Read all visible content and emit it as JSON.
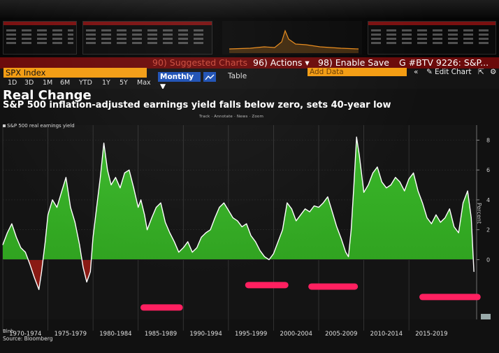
{
  "menu": {
    "suggested_charts": "90) Suggested Charts",
    "actions": "96) Actions ▾",
    "enable_save": "98) Enable Save",
    "btv": "G #BTV 9226: S&P..."
  },
  "security": {
    "ticker": "SPX Index",
    "add_data": "Add Data",
    "edit_chart": "Edit Chart",
    "nav_arrows": "«",
    "edit_icon": "✎",
    "gear_icon": "⚙",
    "popout_icon": "⇱"
  },
  "periods": [
    "1D",
    "3D",
    "1M",
    "6M",
    "YTD",
    "1Y",
    "5Y",
    "Max"
  ],
  "frequency": "Monthly ▼",
  "table_label": "Table",
  "chart_tools": "Track · Annotate · News · Zoom",
  "source": "Source: Bloomberg",
  "source_short": "Blnb",
  "colors": {
    "area_fill": "#2e9e1e",
    "area_fill_top": "#3ab82a",
    "line": "#ffffff",
    "negative_fill": "#8a1a14",
    "marker": "#ff2060",
    "menu_bg": "#6b0a0a",
    "security_bg": "#f39c12",
    "frequency_bg": "#1b4fb4"
  },
  "chart_data": {
    "type": "area",
    "title": "Real Change",
    "subtitle": "S&P 500 inflation-adjusted earnings yield falls below zero, sets 40-year low",
    "legend": [
      "S&P 500 real earnings yield"
    ],
    "ylabel": "Percent",
    "ylim": [
      -4,
      9
    ],
    "yticks": [
      0,
      2,
      4,
      6,
      8
    ],
    "xlim": [
      1970,
      2022.5
    ],
    "x_tick_labels": [
      "1970-1974",
      "1975-1979",
      "1980-1984",
      "1985-1989",
      "1990-1994",
      "1995-1999",
      "2000-2004",
      "2005-2009",
      "2010-2014",
      "2015-2019"
    ],
    "x_tick_starts": [
      1970,
      1975,
      1980,
      1985,
      1990,
      1995,
      2000,
      2005,
      2010,
      2015
    ],
    "grid": true,
    "series": [
      {
        "name": "S&P 500 real earnings yield",
        "x": [
          1970,
          1970.5,
          1971,
          1971.5,
          1972,
          1972.5,
          1973,
          1973.5,
          1974,
          1974.3,
          1974.7,
          1975,
          1975.5,
          1976,
          1976.5,
          1977,
          1977.5,
          1978,
          1978.5,
          1978.9,
          1979.3,
          1979.7,
          1980,
          1980.4,
          1980.8,
          1981.2,
          1981.6,
          1982,
          1982.5,
          1983,
          1983.5,
          1984,
          1984.5,
          1985,
          1985.3,
          1985.7,
          1986,
          1986.5,
          1987,
          1987.5,
          1988,
          1988.5,
          1989,
          1989.5,
          1990,
          1990.5,
          1991,
          1991.5,
          1992,
          1992.5,
          1993,
          1993.5,
          1994,
          1994.5,
          1995,
          1995.5,
          1996,
          1996.5,
          1997,
          1997.5,
          1998,
          1998.5,
          1999,
          1999.5,
          2000,
          2000.5,
          2001,
          2001.5,
          2002,
          2002.5,
          2003,
          2003.5,
          2004,
          2004.5,
          2005,
          2005.5,
          2006,
          2006.5,
          2007,
          2007.5,
          2008,
          2008.3,
          2008.6,
          2008.9,
          2009.2,
          2009.5,
          2010,
          2010.5,
          2011,
          2011.5,
          2012,
          2012.5,
          2013,
          2013.5,
          2014,
          2014.5,
          2015,
          2015.5,
          2016,
          2016.5,
          2017,
          2017.5,
          2018,
          2018.5,
          2019,
          2019.5,
          2020,
          2020.5,
          2021,
          2021.5,
          2021.9,
          2022.2
        ],
        "values": [
          1.0,
          1.8,
          2.4,
          1.5,
          0.8,
          0.5,
          -0.3,
          -1.2,
          -2.0,
          -0.8,
          1.2,
          3.0,
          4.0,
          3.5,
          4.5,
          5.5,
          3.5,
          2.5,
          1.0,
          -0.5,
          -1.5,
          -0.8,
          1.5,
          3.5,
          5.5,
          7.8,
          6.0,
          5.0,
          5.5,
          4.8,
          5.8,
          6.0,
          4.8,
          3.5,
          4.0,
          3.0,
          2.0,
          2.8,
          3.5,
          3.8,
          2.5,
          1.8,
          1.2,
          0.5,
          0.8,
          1.2,
          0.5,
          0.8,
          1.5,
          1.8,
          2.0,
          2.8,
          3.5,
          3.8,
          3.3,
          2.8,
          2.6,
          2.2,
          2.4,
          1.6,
          1.2,
          0.6,
          0.2,
          0.0,
          0.4,
          1.2,
          2.0,
          3.8,
          3.4,
          2.6,
          3.0,
          3.4,
          3.2,
          3.6,
          3.5,
          3.8,
          4.2,
          3.2,
          2.2,
          1.4,
          0.5,
          0.2,
          2.0,
          5.0,
          8.2,
          7.0,
          4.5,
          5.0,
          5.8,
          6.2,
          5.2,
          4.8,
          5.0,
          5.5,
          5.2,
          4.6,
          5.4,
          5.8,
          4.6,
          3.8,
          2.8,
          2.4,
          3.0,
          2.5,
          2.8,
          3.4,
          2.2,
          1.8,
          3.8,
          4.6,
          2.8,
          -0.8
        ]
      }
    ]
  }
}
